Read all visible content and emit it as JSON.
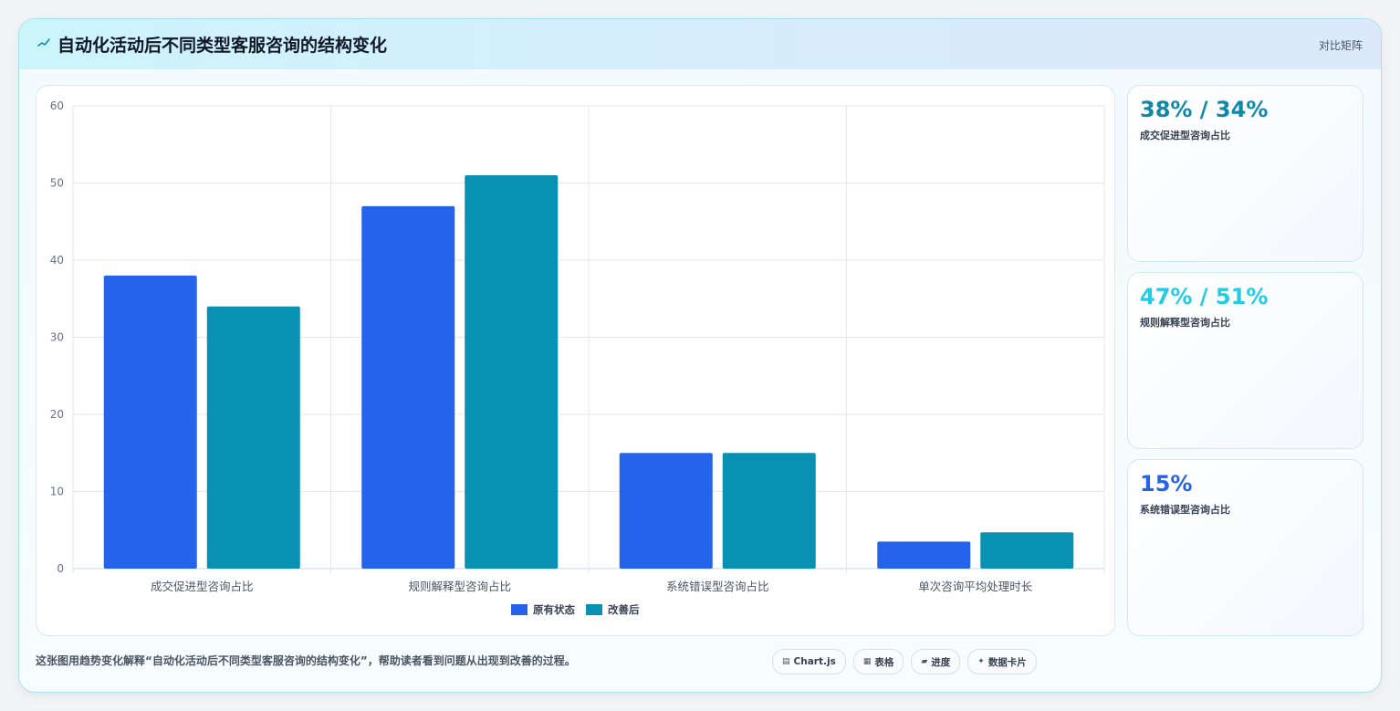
{
  "header": {
    "title": "自动化活动后不同类型客服咨询的结构变化",
    "right_label": "对比矩阵",
    "icon": "trend-line-icon"
  },
  "chart_data": {
    "type": "bar",
    "categories": [
      "成交促进型咨询占比",
      "规则解释型咨询占比",
      "系统错误型咨询占比",
      "单次咨询平均处理时长"
    ],
    "series": [
      {
        "name": "原有状态",
        "values": [
          38,
          47,
          15,
          3.5
        ],
        "color": "#2563eb"
      },
      {
        "name": "改善后",
        "values": [
          34,
          51,
          15,
          4.7
        ],
        "color": "#0891b2"
      }
    ],
    "ylim": [
      0,
      60
    ],
    "yticks": [
      0,
      10,
      20,
      30,
      40,
      50,
      60
    ],
    "grid": true,
    "legend_position": "bottom"
  },
  "stats": [
    {
      "value": "38% / 34%",
      "label": "成交促进型咨询占比",
      "color": "#0e8aa8"
    },
    {
      "value": "47% / 51%",
      "label": "规则解释型咨询占比",
      "color": "#22cde4"
    },
    {
      "value": "15%",
      "label": "系统错误型咨询占比",
      "color": "#2563eb"
    }
  ],
  "footer": {
    "description": "这张图用趋势变化解释“自动化活动后不同类型客服咨询的结构变化”，帮助读者看到问题从出现到改善的过程。",
    "chips": [
      {
        "icon": "▤",
        "label": "Chart.js"
      },
      {
        "icon": "▦",
        "label": "表格"
      },
      {
        "icon": "▰",
        "label": "进度"
      },
      {
        "icon": "✦",
        "label": "数据卡片"
      }
    ]
  }
}
